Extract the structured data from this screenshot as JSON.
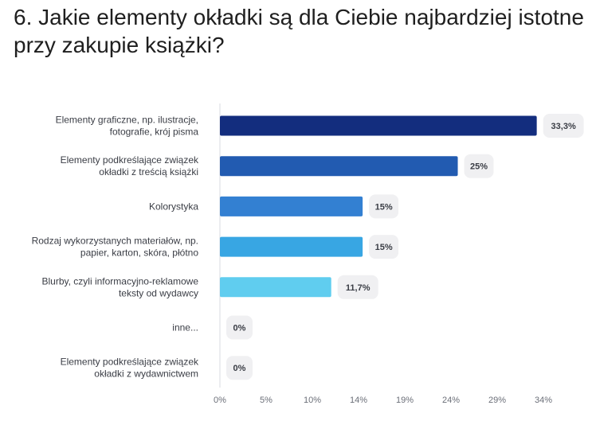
{
  "title": "6. Jakie elementy okładki są dla Ciebie najbardziej istotne przy zakupie książki?",
  "chart_data": {
    "type": "bar",
    "orientation": "horizontal",
    "categories": [
      [
        "Elementy graficzne, np. ilustracje,",
        "fotografie, krój pisma"
      ],
      [
        "Elementy podkreślające związek",
        "okładki z treścią książki"
      ],
      [
        "Kolorystyka"
      ],
      [
        "Rodzaj wykorzystanych materiałów, np.",
        "papier, karton, skóra, płótno"
      ],
      [
        "Blurby, czyli informacyjno-reklamowe",
        "teksty od wydawcy"
      ],
      [
        "inne..."
      ],
      [
        "Elementy podkreślające związek",
        "okładki z wydawnictwem"
      ]
    ],
    "values": [
      33.3,
      25,
      15,
      15,
      11.7,
      0,
      0
    ],
    "value_labels": [
      "33,3%",
      "25%",
      "15%",
      "15%",
      "11,7%",
      "0%",
      "0%"
    ],
    "colors": [
      "#132d7e",
      "#225bb1",
      "#3380d2",
      "#38a6e3",
      "#60cdef",
      "#60cdef",
      "#60cdef"
    ],
    "x_ticks": [
      "0%",
      "5%",
      "10%",
      "14%",
      "19%",
      "24%",
      "29%",
      "34%"
    ],
    "x_tick_values": [
      0,
      4.857,
      9.714,
      14.571,
      19.428,
      24.285,
      29.142,
      34
    ],
    "xlim": [
      0,
      34
    ],
    "label_bubble_color": "#f0f0f2",
    "axis_color": "#d9dbe0"
  }
}
